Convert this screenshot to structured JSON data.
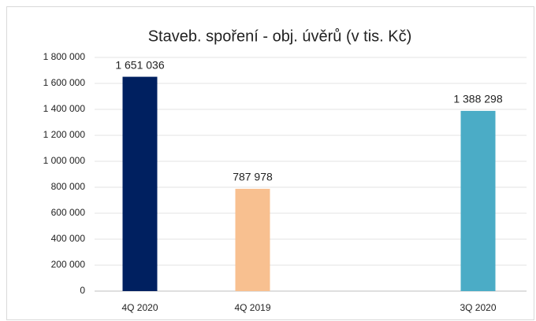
{
  "chart_data": {
    "type": "bar",
    "title": "Staveb. spoření - obj. úvěrů (v tis. Kč)",
    "categories": [
      "4Q 2020",
      "4Q 2019",
      null,
      "3Q 2020"
    ],
    "values": [
      1651036,
      787978,
      null,
      1388298
    ],
    "value_labels": [
      "1 651 036",
      "787 978",
      null,
      "1 388 298"
    ],
    "colors": [
      "#002060",
      "#f8c090",
      null,
      "#4bacc6"
    ],
    "ylim": [
      0,
      1800000
    ],
    "yticks": [
      0,
      {
        "value": 200000,
        "label": "200 000"
      },
      {
        "value": 400000,
        "label": "400 000"
      },
      {
        "value": 600000,
        "label": "600 000"
      },
      {
        "value": 800000,
        "label": "800 000"
      },
      {
        "value": 1000000,
        "label": "1 000 000"
      },
      {
        "value": 1200000,
        "label": "1 200 000"
      },
      {
        "value": 1400000,
        "label": "1 400 000"
      },
      {
        "value": 1600000,
        "label": "1 600 000"
      },
      {
        "value": 1800000,
        "label": "1 800 000"
      }
    ],
    "grid": true
  }
}
